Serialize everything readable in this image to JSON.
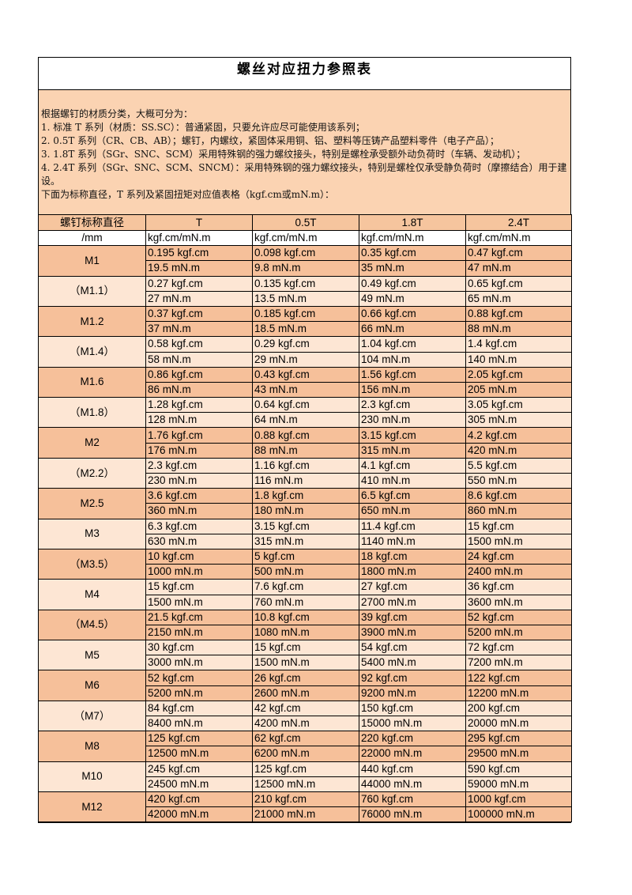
{
  "title": "螺丝对应扭力参照表",
  "intro": [
    "根据螺钉的材质分类，大概可分为：",
    "1. 标准 T 系列（材质：SS.SC）：普通紧固，只要允许应尽可能使用该系列；",
    "2. 0.5T 系列（CR、CB、AB）；螺钉，内螺纹，紧固体采用铜、铝、塑料等压铸产品塑料零件（电子产品）；",
    "3. 1.8T 系列（SGr、SNC、SCM）采用特殊钢的强力螺纹接头，特别是螺栓承受额外动负荷时（车辆、发动机）；",
    "4. 2.4T 系列（SGr、SNC、SCM、SNCM）：采用特殊钢的强力螺纹接头，特别是螺栓仅承受静负荷时（摩擦结合）用于建设。",
    "下面为标称直径，T 系列及紧固扭矩对应值表格（kgf.cm或mN.m）："
  ],
  "table": {
    "header": [
      "螺钉标称直径",
      "T",
      "0.5T",
      "1.8T",
      "2.4T"
    ],
    "subheader": [
      "/mm",
      "kgf.cm/mN.m",
      "kgf.cm/mN.m",
      "kgf.cm/mN.m",
      "kgf.cm/mN.m"
    ],
    "rows": [
      {
        "size": "M1",
        "kgf": [
          "0.195 kgf.cm",
          "0.098 kgf.cm",
          "0.35 kgf.cm",
          "0.47 kgf.cm"
        ],
        "mnm": [
          "19.5 mN.m",
          "9.8 mN.m",
          "35 mN.m",
          "47 mN.m"
        ]
      },
      {
        "size": "（M1.1）",
        "kgf": [
          "0.27 kgf.cm",
          "0.135 kgf.cm",
          "0.49 kgf.cm",
          "0.65 kgf.cm"
        ],
        "mnm": [
          "27 mN.m",
          "13.5 mN.m",
          "49 mN.m",
          "65 mN.m"
        ]
      },
      {
        "size": "M1.2",
        "kgf": [
          "0.37 kgf.cm",
          "0.185 kgf.cm",
          "0.66 kgf.cm",
          "0.88 kgf.cm"
        ],
        "mnm": [
          "37 mN.m",
          "18.5 mN.m",
          "66 mN.m",
          "88 mN.m"
        ]
      },
      {
        "size": "（M1.4）",
        "kgf": [
          "0.58 kgf.cm",
          "0.29 kgf.cm",
          "1.04 kgf.cm",
          "1.4 kgf.cm"
        ],
        "mnm": [
          "58 mN.m",
          "29 mN.m",
          "104 mN.m",
          "140 mN.m"
        ]
      },
      {
        "size": "M1.6",
        "kgf": [
          "0.86 kgf.cm",
          "0.43 kgf.cm",
          "1.56 kgf.cm",
          "2.05 kgf.cm"
        ],
        "mnm": [
          "86 mN.m",
          "43 mN.m",
          "156 mN.m",
          "205 mN.m"
        ]
      },
      {
        "size": "（M1.8）",
        "kgf": [
          "1.28 kgf.cm",
          "0.64 kgf.cm",
          "2.3 kgf.cm",
          "3.05 kgf.cm"
        ],
        "mnm": [
          "128 mN.m",
          "64 mN.m",
          "230 mN.m",
          "305 mN.m"
        ]
      },
      {
        "size": "M2",
        "kgf": [
          "1.76 kgf.cm",
          "0.88 kgf.cm",
          "3.15 kgf.cm",
          "4.2 kgf.cm"
        ],
        "mnm": [
          "176 mN.m",
          "88 mN.m",
          "315 mN.m",
          "420 mN.m"
        ]
      },
      {
        "size": "（M2.2）",
        "kgf": [
          "2.3 kgf.cm",
          "1.16 kgf.cm",
          "4.1 kgf.cm",
          "5.5 kgf.cm"
        ],
        "mnm": [
          "230 mN.m",
          "116 mN.m",
          "410 mN.m",
          "550 mN.m"
        ]
      },
      {
        "size": "M2.5",
        "kgf": [
          "3.6 kgf.cm",
          "1.8 kgf.cm",
          "6.5 kgf.cm",
          "8.6 kgf.cm"
        ],
        "mnm": [
          "360 mN.m",
          "180 mN.m",
          "650 mN.m",
          "860 mN.m"
        ]
      },
      {
        "size": "M3",
        "kgf": [
          "6.3 kgf.cm",
          "3.15 kgf.cm",
          "11.4 kgf.cm",
          "15 kgf.cm"
        ],
        "mnm": [
          "630 mN.m",
          "315 mN.m",
          "1140 mN.m",
          "1500 mN.m"
        ]
      },
      {
        "size": "（M3.5）",
        "kgf": [
          "10 kgf.cm",
          "5 kgf.cm",
          "18 kgf.cm",
          "24 kgf.cm"
        ],
        "mnm": [
          "1000 mN.m",
          "500 mN.m",
          "1800 mN.m",
          "2400 mN.m"
        ]
      },
      {
        "size": "M4",
        "kgf": [
          "15 kgf.cm",
          "7.6 kgf.cm",
          "27 kgf.cm",
          "36 kgf.cm"
        ],
        "mnm": [
          "1500 mN.m",
          "760 mN.m",
          "2700 mN.m",
          "3600 mN.m"
        ]
      },
      {
        "size": "（M4.5）",
        "kgf": [
          "21.5 kgf.cm",
          "10.8 kgf.cm",
          "39 kgf.cm",
          "52 kgf.cm"
        ],
        "mnm": [
          "2150 mN.m",
          "1080 mN.m",
          "3900 mN.m",
          "5200 mN.m"
        ]
      },
      {
        "size": "M5",
        "kgf": [
          "30 kgf.cm",
          "15 kgf.cm",
          "54 kgf.cm",
          "72 kgf.cm"
        ],
        "mnm": [
          "3000 mN.m",
          "1500 mN.m",
          "5400 mN.m",
          "7200 mN.m"
        ]
      },
      {
        "size": "M6",
        "kgf": [
          "52 kgf.cm",
          "26 kgf.cm",
          "92 kgf.cm",
          "122 kgf.cm"
        ],
        "mnm": [
          "5200 mN.m",
          "2600 mN.m",
          "9200 mN.m",
          "12200 mN.m"
        ]
      },
      {
        "size": "（M7）",
        "kgf": [
          "84 kgf.cm",
          "42 kgf.cm",
          "150 kgf.cm",
          "200 kgf.cm"
        ],
        "mnm": [
          "8400 mN.m",
          "4200 mN.m",
          "15000 mN.m",
          "20000 mN.m"
        ]
      },
      {
        "size": "M8",
        "kgf": [
          "125 kgf.cm",
          "62 kgf.cm",
          "220 kgf.cm",
          "295 kgf.cm"
        ],
        "mnm": [
          "12500 mN.m",
          "6200 mN.m",
          "22000 mN.m",
          "29500 mN.m"
        ]
      },
      {
        "size": "M10",
        "kgf": [
          "245 kgf.cm",
          "125 kgf.cm",
          "440 kgf.cm",
          "590 kgf.cm"
        ],
        "mnm": [
          "24500 mN.m",
          "12500 mN.m",
          "44000 mN.m",
          "59000 mN.m"
        ]
      },
      {
        "size": "M12",
        "kgf": [
          "420 kgf.cm",
          "210 kgf.cm",
          "760 kgf.cm",
          "1000 kgf.cm"
        ],
        "mnm": [
          "42000 mN.m",
          "21000 mN.m",
          "76000 mN.m",
          "100000 mN.m"
        ]
      }
    ]
  }
}
